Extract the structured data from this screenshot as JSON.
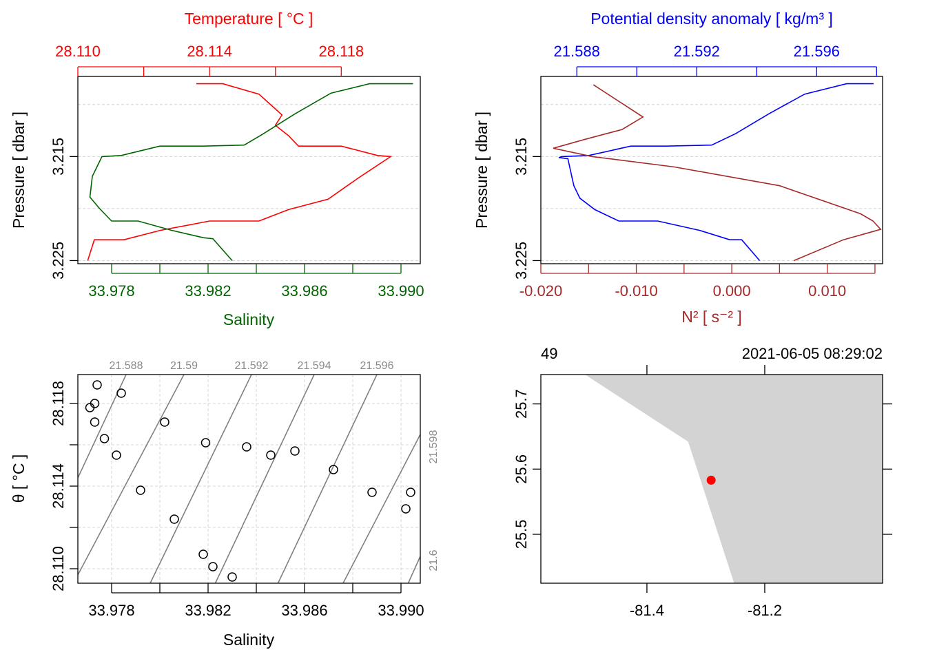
{
  "colors": {
    "temperature": "#ff0000",
    "salinity": "#006400",
    "density": "#0000ff",
    "n2": "#a52a2a",
    "isopycnal": "#808080",
    "coast": "#d3d3d3",
    "station": "#ff0000"
  },
  "chart_data": [
    {
      "type": "line",
      "panel": "temperature-salinity-profile",
      "xlabel_top": "Temperature [ °C ]",
      "xlabel_bottom": "Salinity",
      "ylabel": "Pressure [ dbar ]",
      "ylim": [
        3.2253,
        3.2073
      ],
      "yticks": [
        3.215,
        3.225
      ],
      "ygrid": [
        3.21,
        3.215,
        3.22,
        3.225
      ],
      "temperature_xlim": [
        28.11,
        28.1204
      ],
      "temperature_ticks": [
        28.11,
        28.112,
        28.114,
        28.116,
        28.118
      ],
      "temperature_labels": [
        "28.110",
        "28.114",
        "28.118"
      ],
      "salinity_xlim": [
        33.9766,
        33.9908
      ],
      "salinity_ticks": [
        33.978,
        33.98,
        33.982,
        33.984,
        33.986,
        33.988,
        33.99
      ],
      "salinity_labels": [
        "33.978",
        "33.982",
        "33.986",
        "33.990"
      ],
      "series": [
        {
          "name": "Temperature",
          "values": [
            [
              28.1136,
              3.208
            ],
            [
              28.1144,
              3.208
            ],
            [
              28.1155,
              3.209
            ],
            [
              28.1162,
              3.211
            ],
            [
              28.116,
              3.212
            ],
            [
              28.1164,
              3.213
            ],
            [
              28.1167,
              3.214
            ],
            [
              28.118,
              3.214
            ],
            [
              28.1191,
              3.2149
            ],
            [
              28.1195,
              3.215
            ],
            [
              28.1185,
              3.2171
            ],
            [
              28.1176,
              3.2191
            ],
            [
              28.1164,
              3.2201
            ],
            [
              28.1155,
              3.2212
            ],
            [
              28.114,
              3.2212
            ],
            [
              28.1125,
              3.2221
            ],
            [
              28.1114,
              3.223
            ],
            [
              28.1105,
              3.223
            ],
            [
              28.1103,
              3.225
            ]
          ]
        },
        {
          "name": "Salinity",
          "values": [
            [
              33.9905,
              3.208
            ],
            [
              33.9887,
              3.208
            ],
            [
              33.9871,
              3.2089
            ],
            [
              33.9856,
              3.2109
            ],
            [
              33.9843,
              3.2128
            ],
            [
              33.9835,
              3.2139
            ],
            [
              33.9818,
              3.214
            ],
            [
              33.98,
              3.214
            ],
            [
              33.9784,
              3.2149
            ],
            [
              33.9776,
              3.215
            ],
            [
              33.9772,
              3.2169
            ],
            [
              33.9771,
              3.2189
            ],
            [
              33.9775,
              3.22
            ],
            [
              33.978,
              3.2212
            ],
            [
              33.9791,
              3.2212
            ],
            [
              33.9805,
              3.2221
            ],
            [
              33.9818,
              3.2228
            ],
            [
              33.9822,
              3.2229
            ],
            [
              33.983,
              3.225
            ]
          ]
        }
      ]
    },
    {
      "type": "line",
      "panel": "density-n2-profile",
      "xlabel_top": "Potential density anomaly [ kg/m³ ]",
      "xlabel_bottom": "N² [ s⁻² ]",
      "ylabel": "Pressure [ dbar ]",
      "ylim": [
        3.2253,
        3.2073
      ],
      "yticks": [
        3.215,
        3.225
      ],
      "ygrid": [
        3.21,
        3.215,
        3.22,
        3.225
      ],
      "density_xlim": [
        21.5868,
        21.5982
      ],
      "density_ticks": [
        21.588,
        21.59,
        21.592,
        21.594,
        21.596,
        21.598
      ],
      "density_labels": [
        "21.588",
        "21.592",
        "21.596"
      ],
      "n2_xlim": [
        -0.02,
        0.0158
      ],
      "n2_ticks": [
        -0.02,
        -0.015,
        -0.01,
        -0.005,
        0,
        0.005,
        0.01,
        0.015
      ],
      "n2_labels": [
        "-0.020",
        "-0.010",
        "0.000",
        "0.010"
      ],
      "series": [
        {
          "name": "Potential density anomaly",
          "values": [
            [
              21.5979,
              3.208
            ],
            [
              21.597,
              3.208
            ],
            [
              21.5956,
              3.209
            ],
            [
              21.5944,
              3.2109
            ],
            [
              21.5933,
              3.2128
            ],
            [
              21.5925,
              3.2139
            ],
            [
              21.591,
              3.214
            ],
            [
              21.5898,
              3.214
            ],
            [
              21.5884,
              3.2149
            ],
            [
              21.5875,
              3.215
            ],
            [
              21.5874,
              3.2151
            ],
            [
              21.5877,
              3.2152
            ],
            [
              21.5878,
              3.2165
            ],
            [
              21.5879,
              3.2178
            ],
            [
              21.5881,
              3.219
            ],
            [
              21.5886,
              3.2201
            ],
            [
              21.5894,
              3.2212
            ],
            [
              21.5907,
              3.2212
            ],
            [
              21.5921,
              3.2221
            ],
            [
              21.5931,
              3.223
            ],
            [
              21.5935,
              3.223
            ],
            [
              21.5941,
              3.225
            ]
          ]
        },
        {
          "name": "N²",
          "values": [
            [
              -0.0145,
              3.2081
            ],
            [
              -0.0093,
              3.2112
            ],
            [
              -0.0115,
              3.2124
            ],
            [
              -0.0152,
              3.2133
            ],
            [
              -0.0187,
              3.2142
            ],
            [
              -0.0146,
              3.215
            ],
            [
              -0.006,
              3.216
            ],
            [
              0.005,
              3.2178
            ],
            [
              0.0135,
              3.2205
            ],
            [
              0.0148,
              3.2212
            ],
            [
              0.0156,
              3.222
            ],
            [
              0.0117,
              3.223
            ],
            [
              0.0065,
              3.225
            ]
          ]
        }
      ]
    },
    {
      "type": "scatter",
      "panel": "ts-diagram",
      "xlabel": "Salinity",
      "ylabel": "θ [ °C ]",
      "xlim": [
        33.9766,
        33.9908
      ],
      "ylim": [
        28.1093,
        28.1194
      ],
      "xticks": [
        33.978,
        33.98,
        33.982,
        33.984,
        33.986,
        33.988,
        33.99
      ],
      "xlabels": [
        "33.978",
        "33.982",
        "33.986",
        "33.990"
      ],
      "yticks": [
        28.11,
        28.112,
        28.114,
        28.116,
        28.118
      ],
      "ylabels": [
        "28.110",
        "28.114",
        "28.118"
      ],
      "isopycnal_labels_top": [
        {
          "label": "21.588",
          "s": 33.9786
        },
        {
          "label": "21.59",
          "s": 33.981
        },
        {
          "label": "21.592",
          "s": 33.9838
        },
        {
          "label": "21.594",
          "s": 33.9864
        },
        {
          "label": "21.596",
          "s": 33.989
        }
      ],
      "isopycnal_labels_right": [
        {
          "label": "21.598",
          "t": 28.1159
        },
        {
          "label": "21.6",
          "t": 28.1104
        }
      ],
      "isopycnals": [
        [
          [
            33.9766,
            28.1144
          ],
          [
            33.9786,
            28.1194
          ]
        ],
        [
          [
            33.9766,
            28.1097
          ],
          [
            33.981,
            28.1194
          ]
        ],
        [
          [
            33.9796,
            28.1093
          ],
          [
            33.9838,
            28.1194
          ]
        ],
        [
          [
            33.9823,
            28.1093
          ],
          [
            33.9864,
            28.1194
          ]
        ],
        [
          [
            33.9849,
            28.1093
          ],
          [
            33.989,
            28.1194
          ]
        ],
        [
          [
            33.9876,
            28.1093
          ],
          [
            33.9908,
            28.1165
          ]
        ],
        [
          [
            33.9903,
            28.1093
          ],
          [
            33.9908,
            28.1106
          ]
        ]
      ],
      "points": [
        [
          33.9774,
          28.1189
        ],
        [
          33.9784,
          28.1185
        ],
        [
          33.9773,
          28.118
        ],
        [
          33.9771,
          28.1178
        ],
        [
          33.9773,
          28.1171
        ],
        [
          33.9802,
          28.1171
        ],
        [
          33.9777,
          28.1163
        ],
        [
          33.9819,
          28.1161
        ],
        [
          33.9836,
          28.1159
        ],
        [
          33.9856,
          28.1157
        ],
        [
          33.9846,
          28.1155
        ],
        [
          33.9782,
          28.1155
        ],
        [
          33.9872,
          28.1148
        ],
        [
          33.9792,
          28.1138
        ],
        [
          33.9888,
          28.1137
        ],
        [
          33.9904,
          28.1137
        ],
        [
          33.9902,
          28.1129
        ],
        [
          33.9806,
          28.1124
        ],
        [
          33.9818,
          28.1107
        ],
        [
          33.9822,
          28.1101
        ],
        [
          33.983,
          28.1096
        ]
      ]
    },
    {
      "type": "map",
      "panel": "location-map",
      "label_left": "49",
      "label_right": "2021-06-05 08:29:02",
      "xlim": [
        -81.58,
        -81.0
      ],
      "ylim": [
        25.425,
        25.745
      ],
      "xticks": [
        -81.4,
        -81.2
      ],
      "xlabels": [
        "-81.4",
        "-81.2"
      ],
      "yticks": [
        25.5,
        25.6,
        25.7
      ],
      "ylabels": [
        "25.5",
        "25.6",
        "25.7"
      ],
      "land_polygon": [
        [
          -81.505,
          25.745
        ],
        [
          -81.0,
          25.745
        ],
        [
          -81.0,
          25.425
        ],
        [
          -81.252,
          25.425
        ],
        [
          -81.33,
          25.642
        ]
      ],
      "station": [
        -81.291,
        25.583
      ]
    }
  ]
}
